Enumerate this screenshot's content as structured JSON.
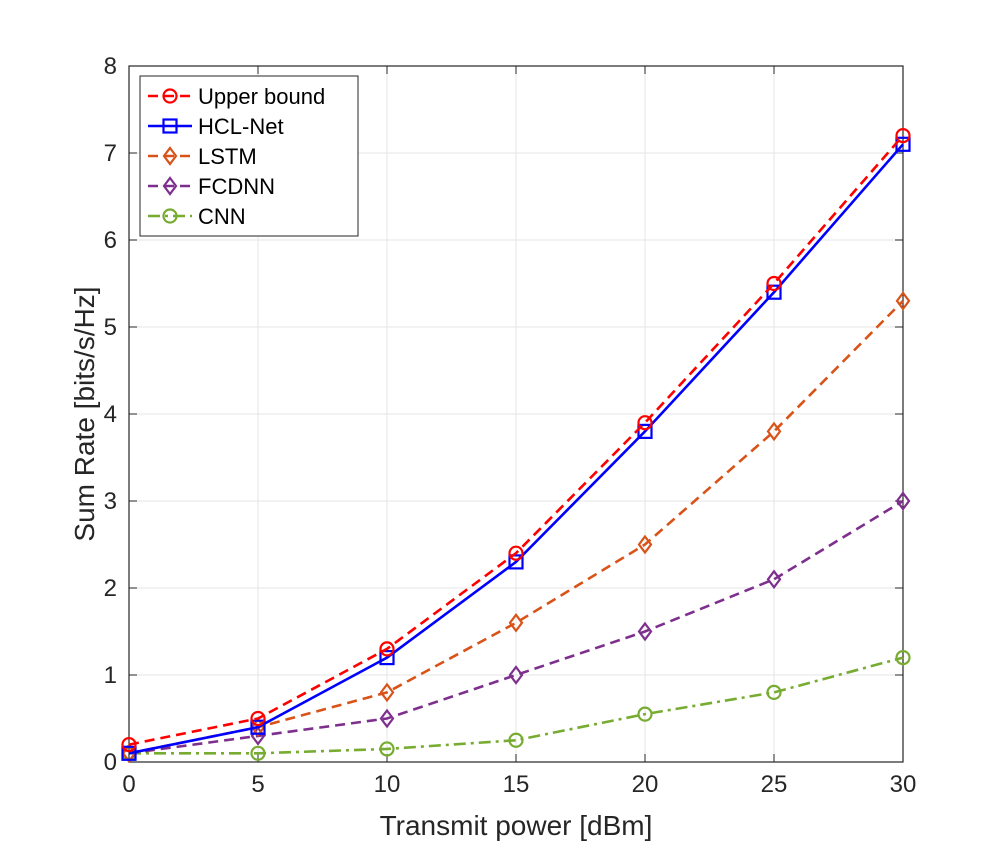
{
  "chart_data": {
    "type": "line",
    "title": "",
    "xlabel": "Transmit power [dBm]",
    "ylabel": "Sum Rate [bits/s/Hz]",
    "x": [
      0,
      5,
      10,
      15,
      20,
      25,
      30
    ],
    "xlim": [
      0,
      30
    ],
    "ylim": [
      0,
      8
    ],
    "xticks": [
      0,
      5,
      10,
      15,
      20,
      25,
      30
    ],
    "yticks": [
      0,
      1,
      2,
      3,
      4,
      5,
      6,
      7,
      8
    ],
    "grid": true,
    "legend_position": "top-left",
    "series": [
      {
        "name": "Upper bound",
        "values": [
          0.2,
          0.5,
          1.3,
          2.4,
          3.9,
          5.5,
          7.2
        ],
        "color": "#ff0000",
        "marker": "circle",
        "dash": "dashed"
      },
      {
        "name": "HCL-Net",
        "values": [
          0.1,
          0.4,
          1.2,
          2.3,
          3.8,
          5.4,
          7.1
        ],
        "color": "#0000ff",
        "marker": "square",
        "dash": "solid"
      },
      {
        "name": "LSTM",
        "values": [
          0.1,
          0.4,
          0.8,
          1.6,
          2.5,
          3.8,
          5.3
        ],
        "color": "#d95319",
        "marker": "diamond",
        "dash": "dashed"
      },
      {
        "name": "FCDNN",
        "values": [
          0.1,
          0.3,
          0.5,
          1.0,
          1.5,
          2.1,
          3.0
        ],
        "color": "#7e2f8e",
        "marker": "diamond",
        "dash": "dashed"
      },
      {
        "name": "CNN",
        "values": [
          0.1,
          0.1,
          0.15,
          0.25,
          0.55,
          0.8,
          1.2
        ],
        "color": "#77ac30",
        "marker": "circle",
        "dash": "dashdot"
      }
    ]
  }
}
